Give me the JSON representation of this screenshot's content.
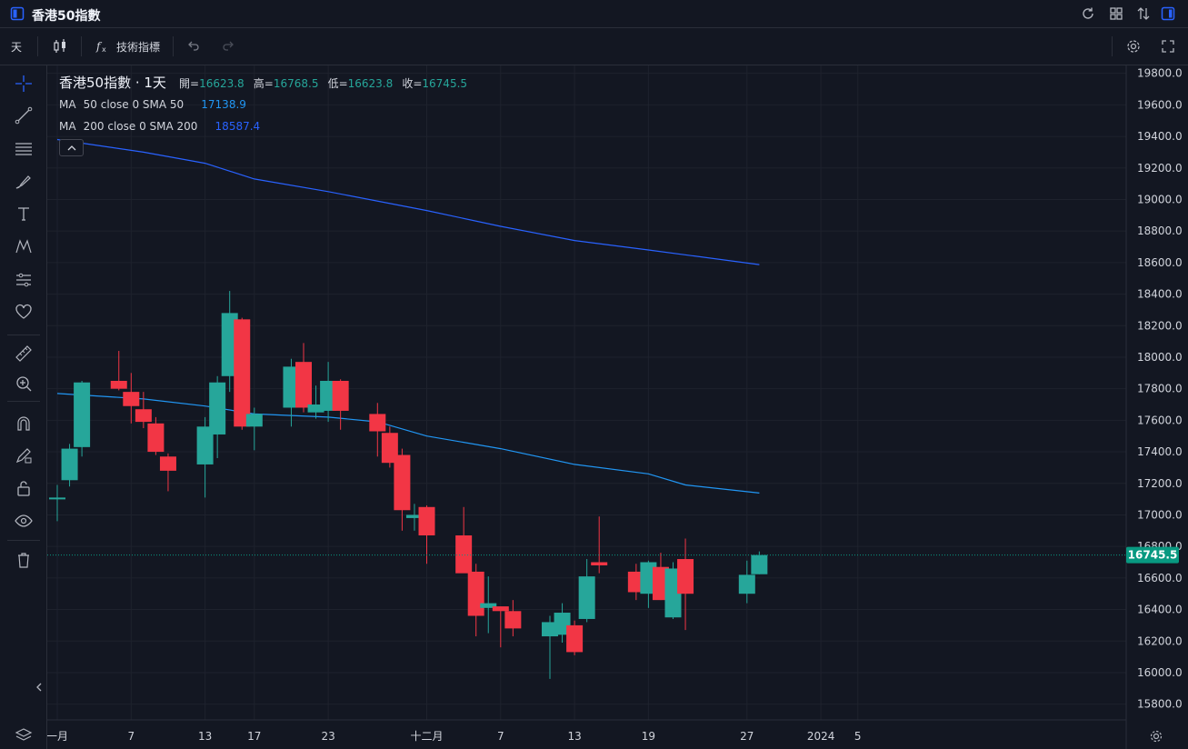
{
  "app": {
    "title": "香港50指數"
  },
  "toolbar": {
    "interval": "天",
    "indicators_label": "技術指標"
  },
  "legend": {
    "symbol": "香港50指數 · 1天",
    "open_label": "開=",
    "open": "16623.8",
    "high_label": "高=",
    "high": "16768.5",
    "low_label": "低=",
    "low": "16623.8",
    "close_label": "收=",
    "close": "16745.5",
    "ma50_prefix": "MA",
    "ma50_label": "50 close 0 SMA 50",
    "ma50_value": "17138.9",
    "ma200_prefix": "MA",
    "ma200_label": "200 close 0 SMA 200",
    "ma200_value": "18587.4"
  },
  "colors": {
    "up": "#26a69a",
    "down": "#f23645",
    "ma50": "#2196f3",
    "ma200": "#2962ff",
    "background": "#131722",
    "grid": "#1e222d",
    "price_tag": "#089981"
  },
  "icons": {
    "top": [
      "layout-icon",
      "refresh-icon",
      "grid-icon",
      "compare-icon",
      "panel-icon"
    ],
    "sidebar": [
      "crosshair-icon",
      "trendline-icon",
      "fib-icon",
      "brush-icon",
      "text-icon",
      "pattern-icon",
      "forecast-icon",
      "heart-icon",
      "ruler-icon",
      "zoom-icon",
      "magnet-icon",
      "lock-drawing-icon",
      "lock-icon",
      "eye-icon",
      "trash-icon"
    ]
  },
  "chart_data": {
    "type": "candlestick",
    "symbol": "香港50指數",
    "interval": "1天",
    "ylim": [
      15700,
      19850
    ],
    "y_ticks": [
      15800,
      16000,
      16200,
      16400,
      16600,
      16800,
      17000,
      17200,
      17400,
      17600,
      17800,
      18000,
      18200,
      18400,
      18600,
      18800,
      19000,
      19200,
      19400,
      19600,
      19800
    ],
    "y_tick_labels": [
      "15800.0",
      "16000.0",
      "16200.0",
      "16400.0",
      "16600.0",
      "16800.0",
      "17000.0",
      "17200.0",
      "17400.0",
      "17600.0",
      "17800.0",
      "18000.0",
      "18200.0",
      "18400.0",
      "18600.0",
      "18800.0",
      "19000.0",
      "19200.0",
      "19400.0",
      "19600.0",
      "19800.0"
    ],
    "x_ticks": [
      {
        "label": "一月",
        "date": "2023-11-01"
      },
      {
        "label": "7",
        "date": "2023-11-07"
      },
      {
        "label": "13",
        "date": "2023-11-13"
      },
      {
        "label": "17",
        "date": "2023-11-17"
      },
      {
        "label": "23",
        "date": "2023-11-23"
      },
      {
        "label": "十二月",
        "date": "2023-12-01"
      },
      {
        "label": "7",
        "date": "2023-12-07"
      },
      {
        "label": "13",
        "date": "2023-12-13"
      },
      {
        "label": "19",
        "date": "2023-12-19"
      },
      {
        "label": "27",
        "date": "2023-12-27"
      },
      {
        "label": "2024",
        "date": "2024-01-02"
      },
      {
        "label": "5",
        "date": "2024-01-05"
      }
    ],
    "candles": [
      {
        "date": "2023-11-01",
        "o": 17110,
        "h": 17190,
        "l": 16960,
        "c": 17110
      },
      {
        "date": "2023-11-02",
        "o": 17220,
        "h": 17450,
        "l": 17180,
        "c": 17420
      },
      {
        "date": "2023-11-03",
        "o": 17430,
        "h": 17850,
        "l": 17370,
        "c": 17840
      },
      {
        "date": "2023-11-06",
        "o": 17850,
        "h": 18040,
        "l": 17790,
        "c": 17800
      },
      {
        "date": "2023-11-07",
        "o": 17780,
        "h": 17900,
        "l": 17580,
        "c": 17690
      },
      {
        "date": "2023-11-08",
        "o": 17670,
        "h": 17780,
        "l": 17550,
        "c": 17590
      },
      {
        "date": "2023-11-09",
        "o": 17580,
        "h": 17620,
        "l": 17380,
        "c": 17400
      },
      {
        "date": "2023-11-10",
        "o": 17370,
        "h": 17390,
        "l": 17150,
        "c": 17280
      },
      {
        "date": "2023-11-13",
        "o": 17320,
        "h": 17620,
        "l": 17110,
        "c": 17560
      },
      {
        "date": "2023-11-14",
        "o": 17510,
        "h": 17880,
        "l": 17360,
        "c": 17840
      },
      {
        "date": "2023-11-15",
        "o": 17880,
        "h": 18420,
        "l": 17780,
        "c": 18280
      },
      {
        "date": "2023-11-16",
        "o": 18240,
        "h": 18250,
        "l": 17540,
        "c": 17560
      },
      {
        "date": "2023-11-17",
        "o": 17560,
        "h": 17680,
        "l": 17410,
        "c": 17640
      },
      {
        "date": "2023-11-20",
        "o": 17680,
        "h": 17990,
        "l": 17560,
        "c": 17940
      },
      {
        "date": "2023-11-21",
        "o": 17970,
        "h": 18090,
        "l": 17650,
        "c": 17680
      },
      {
        "date": "2023-11-22",
        "o": 17650,
        "h": 17820,
        "l": 17610,
        "c": 17700
      },
      {
        "date": "2023-11-23",
        "o": 17660,
        "h": 17970,
        "l": 17590,
        "c": 17850
      },
      {
        "date": "2023-11-24",
        "o": 17850,
        "h": 17860,
        "l": 17540,
        "c": 17660
      },
      {
        "date": "2023-11-27",
        "o": 17640,
        "h": 17710,
        "l": 17370,
        "c": 17530
      },
      {
        "date": "2023-11-28",
        "o": 17520,
        "h": 17560,
        "l": 17300,
        "c": 17330
      },
      {
        "date": "2023-11-29",
        "o": 17380,
        "h": 17420,
        "l": 16900,
        "c": 17030
      },
      {
        "date": "2023-11-30",
        "o": 16980,
        "h": 17070,
        "l": 16900,
        "c": 17000
      },
      {
        "date": "2023-12-01",
        "o": 17050,
        "h": 17060,
        "l": 16690,
        "c": 16870
      },
      {
        "date": "2023-12-04",
        "o": 16870,
        "h": 17050,
        "l": 16640,
        "c": 16630
      },
      {
        "date": "2023-12-05",
        "o": 16640,
        "h": 16690,
        "l": 16230,
        "c": 16360
      },
      {
        "date": "2023-12-06",
        "o": 16410,
        "h": 16610,
        "l": 16250,
        "c": 16440
      },
      {
        "date": "2023-12-07",
        "o": 16420,
        "h": 16420,
        "l": 16160,
        "c": 16390
      },
      {
        "date": "2023-12-08",
        "o": 16390,
        "h": 16460,
        "l": 16230,
        "c": 16280
      },
      {
        "date": "2023-12-11",
        "o": 16230,
        "h": 16360,
        "l": 15960,
        "c": 16320
      },
      {
        "date": "2023-12-12",
        "o": 16240,
        "h": 16440,
        "l": 16190,
        "c": 16380
      },
      {
        "date": "2023-12-13",
        "o": 16300,
        "h": 16330,
        "l": 16110,
        "c": 16130
      },
      {
        "date": "2023-12-14",
        "o": 16340,
        "h": 16720,
        "l": 16320,
        "c": 16610
      },
      {
        "date": "2023-12-15",
        "o": 16700,
        "h": 16990,
        "l": 16630,
        "c": 16680
      },
      {
        "date": "2023-12-18",
        "o": 16640,
        "h": 16690,
        "l": 16460,
        "c": 16510
      },
      {
        "date": "2023-12-19",
        "o": 16500,
        "h": 16710,
        "l": 16410,
        "c": 16700
      },
      {
        "date": "2023-12-20",
        "o": 16670,
        "h": 16760,
        "l": 16460,
        "c": 16460
      },
      {
        "date": "2023-12-21",
        "o": 16350,
        "h": 16700,
        "l": 16340,
        "c": 16660
      },
      {
        "date": "2023-12-22",
        "o": 16720,
        "h": 16850,
        "l": 16270,
        "c": 16500
      },
      {
        "date": "2023-12-27",
        "o": 16500,
        "h": 16710,
        "l": 16440,
        "c": 16620
      },
      {
        "date": "2023-12-28",
        "o": 16623.8,
        "h": 16768.5,
        "l": 16623.8,
        "c": 16745.5
      }
    ],
    "series": [
      {
        "name": "MA 50 close 0 SMA 50",
        "type": "line",
        "values": [
          {
            "date": "2023-11-01",
            "v": 17770
          },
          {
            "date": "2023-11-08",
            "v": 17735
          },
          {
            "date": "2023-11-13",
            "v": 17690
          },
          {
            "date": "2023-11-17",
            "v": 17640
          },
          {
            "date": "2023-11-23",
            "v": 17620
          },
          {
            "date": "2023-11-27",
            "v": 17590
          },
          {
            "date": "2023-12-01",
            "v": 17500
          },
          {
            "date": "2023-12-07",
            "v": 17420
          },
          {
            "date": "2023-12-13",
            "v": 17320
          },
          {
            "date": "2023-12-19",
            "v": 17260
          },
          {
            "date": "2023-12-22",
            "v": 17190
          },
          {
            "date": "2023-12-28",
            "v": 17138.9
          }
        ]
      },
      {
        "name": "MA 200 close 0 SMA 200",
        "type": "line",
        "values": [
          {
            "date": "2023-11-01",
            "v": 19380
          },
          {
            "date": "2023-11-08",
            "v": 19300
          },
          {
            "date": "2023-11-13",
            "v": 19230
          },
          {
            "date": "2023-11-17",
            "v": 19130
          },
          {
            "date": "2023-11-23",
            "v": 19050
          },
          {
            "date": "2023-12-01",
            "v": 18930
          },
          {
            "date": "2023-12-07",
            "v": 18830
          },
          {
            "date": "2023-12-13",
            "v": 18740
          },
          {
            "date": "2023-12-19",
            "v": 18680
          },
          {
            "date": "2023-12-28",
            "v": 18587.4
          }
        ]
      }
    ],
    "last_price": "16745.5"
  }
}
